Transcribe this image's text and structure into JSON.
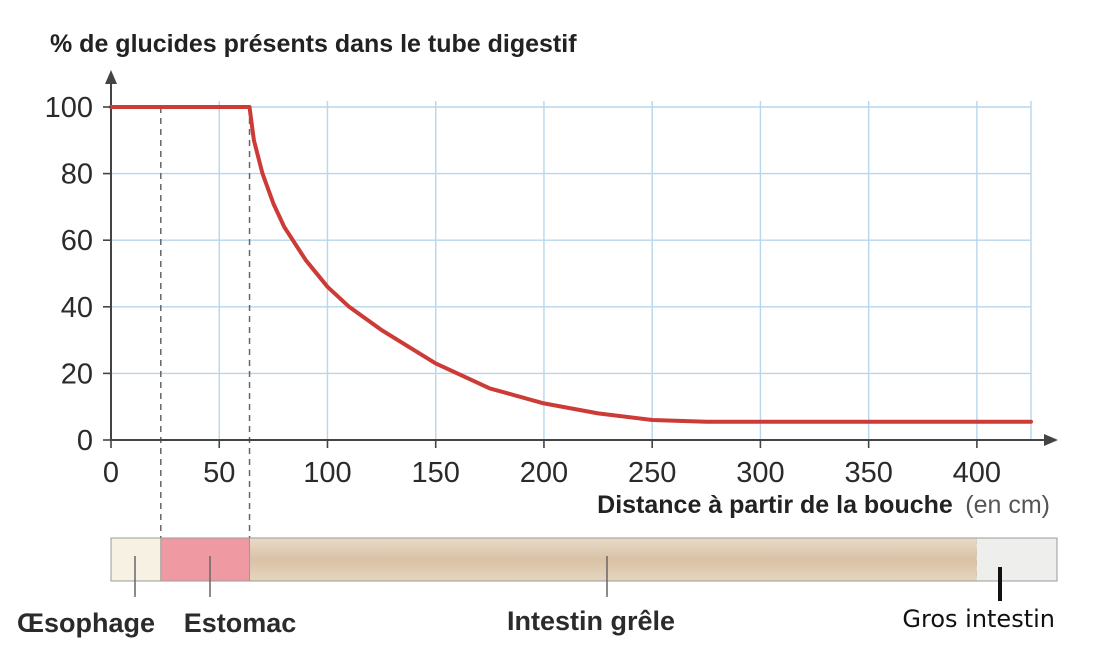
{
  "chart_data": {
    "type": "line",
    "ylabel": "% de glucides présents dans le tube digestif",
    "xlabel": "Distance à partir de la bouche",
    "xlabel_unit": "(en cm)",
    "xlim": [
      0,
      425
    ],
    "ylim": [
      0,
      100
    ],
    "x_ticks": [
      0,
      50,
      100,
      150,
      200,
      250,
      300,
      350,
      400
    ],
    "y_ticks": [
      0,
      20,
      40,
      60,
      80,
      100
    ],
    "grid": true,
    "series": [
      {
        "color": "#cc3b36",
        "x": [
          0,
          10,
          20,
          30,
          40,
          50,
          60,
          64,
          66,
          70,
          75,
          80,
          90,
          100,
          110,
          125,
          150,
          175,
          200,
          225,
          250,
          275,
          300,
          350,
          400,
          425
        ],
        "y": [
          100,
          100,
          100,
          100,
          100,
          100,
          100,
          100,
          90,
          80,
          71,
          64,
          54,
          46,
          40,
          33,
          23,
          15.5,
          11,
          8,
          6,
          5.5,
          5.5,
          5.5,
          5.5,
          5.5
        ]
      }
    ],
    "organ_boundaries": [
      23,
      64,
      400
    ],
    "organs": [
      {
        "label": "Œsophage",
        "from": 0,
        "to": 23,
        "color": "#f6f1e2",
        "label_style": "bold"
      },
      {
        "label": "Estomac",
        "from": 23,
        "to": 64,
        "color": "#ef9aa2",
        "label_style": "bold"
      },
      {
        "label": "Intestin grêle",
        "from": 64,
        "to": 400,
        "color": "#dec8ad",
        "label_style": "bold"
      },
      {
        "label": "Gros intestin",
        "from": 400,
        "to": 425,
        "color": "#eeeeec",
        "label_style": "plain"
      }
    ]
  }
}
